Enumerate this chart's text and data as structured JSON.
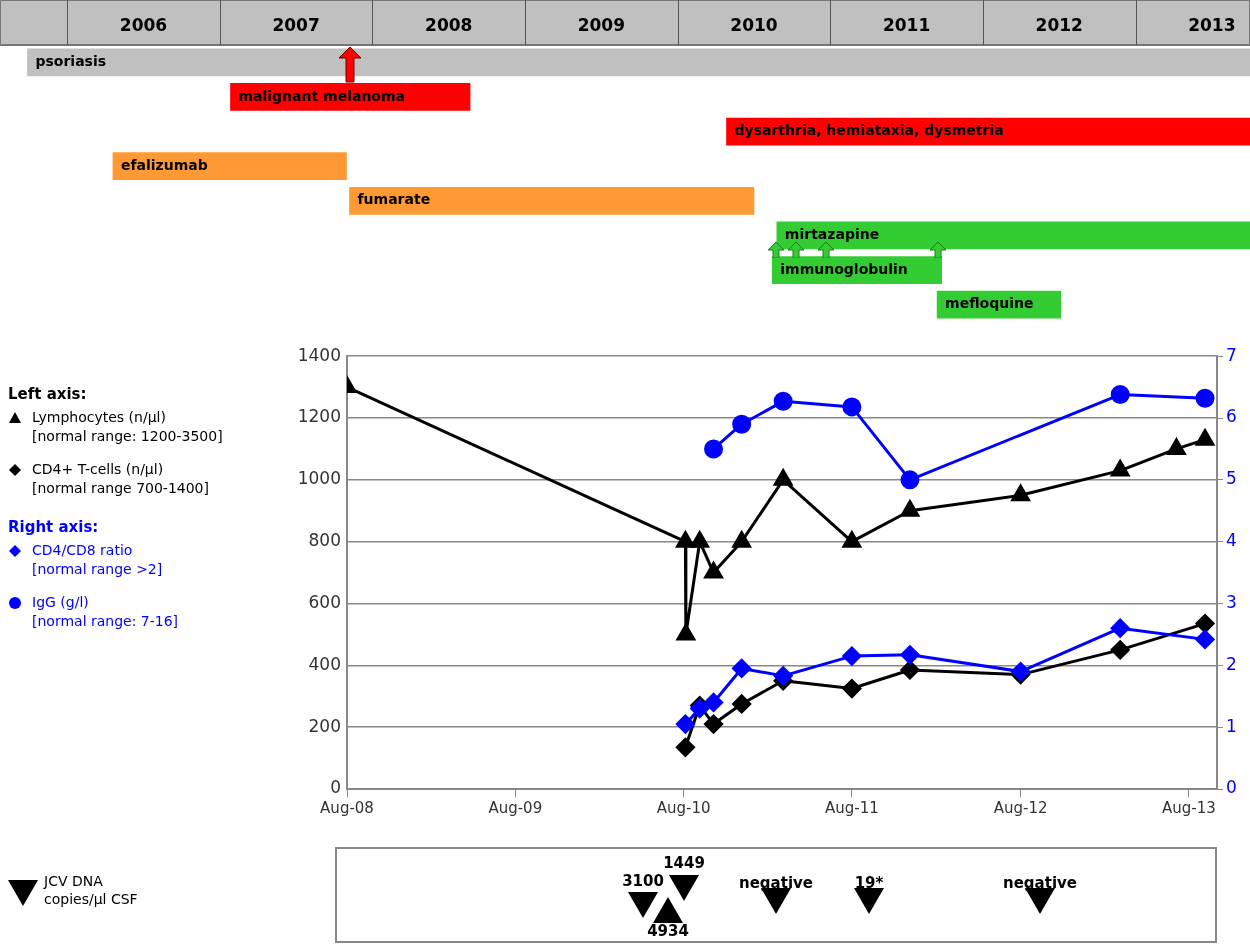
{
  "chart_data": [
    {
      "type": "bar",
      "orientation": "horizontal",
      "categories": [
        null,
        null,
        null,
        null,
        null,
        null,
        null,
        null
      ],
      "xlim": [
        2005.56,
        2013.75
      ],
      "xticks": [
        {
          "value": 2006.5,
          "label": "2006"
        },
        {
          "value": 2007.5,
          "label": "2007"
        },
        {
          "value": 2008.5,
          "label": "2008"
        },
        {
          "value": 2009.5,
          "label": "2009"
        },
        {
          "value": 2010.5,
          "label": "2010"
        },
        {
          "value": 2011.5,
          "label": "2011"
        },
        {
          "value": 2012.5,
          "label": "2012"
        },
        {
          "value": 2013.5,
          "label": "2013"
        }
      ],
      "tick_labels": "x",
      "base": [
        2005.74,
        2007.07,
        2010.32,
        2006.3,
        2007.85,
        2010.65,
        2010.62,
        2011.7
      ],
      "values": [
        8.01,
        1.57,
        3.43,
        1.53,
        2.65,
        3.1,
        1.11,
        0.81
      ],
      "colors": [
        "#c0c0c0",
        "#ff0000",
        "#ff0000",
        "#ff9933",
        "#ff9933",
        "#33cc33",
        "#33cc33",
        "#33cc33"
      ],
      "value_labels": [
        "psoriasis",
        "malignant melanoma",
        "dysarthria, hemiataxia, dysmetria",
        "efalizumab",
        "fumarate",
        "mirtazapine",
        "immunoglobulin",
        "mefloquine"
      ]
    },
    {
      "type": "line",
      "xlim": [
        "2008-08-01",
        "2013-10-01"
      ],
      "xticks": [
        {
          "value": "2008-08-01",
          "label": "Aug-08"
        },
        {
          "value": "2009-08-01",
          "label": "Aug-09"
        },
        {
          "value": "2010-08-01",
          "label": "Aug-10"
        },
        {
          "value": "2011-08-01",
          "label": "Aug-11"
        },
        {
          "value": "2012-08-01",
          "label": "Aug-12"
        },
        {
          "value": "2013-08-01",
          "label": "Aug-13"
        }
      ],
      "ylim": [
        0,
        1400
      ],
      "yticks": [
        0,
        200,
        400,
        600,
        800,
        1000,
        1200,
        1400
      ],
      "y2lim": [
        0,
        7
      ],
      "y2ticks": [
        0,
        1,
        2,
        3,
        4,
        5,
        6,
        7
      ],
      "grid": "y",
      "legend": "left",
      "line_style": "solid",
      "annotations": [
        "Left axis:",
        "Right axis:"
      ],
      "series": [
        {
          "name": "Lymphocytes (n/µl)\n[normal range: 1200-3500]",
          "color": "#000000",
          "marker": "triangle",
          "axis": "y",
          "x": [
            "2008-08-01",
            "2010-08-05",
            "2010-08-06",
            "2010-09-05",
            "2010-10-05",
            "2010-12-05",
            "2011-03-05",
            "2011-08-01",
            "2011-12-05",
            "2012-08-01",
            "2013-03-05",
            "2013-07-05",
            "2013-09-05"
          ],
          "values": [
            1300,
            800,
            500,
            800,
            700,
            800,
            1000,
            800,
            900,
            950,
            1030,
            1100,
            1130
          ]
        },
        {
          "name": "CD4+ T-cells (n/µl)\n[normal range 700-1400]",
          "color": "#000000",
          "marker": "diamond",
          "axis": "y",
          "x": [
            "2010-08-05",
            "2010-09-05",
            "2010-10-05",
            "2010-12-05",
            "2011-03-05",
            "2011-08-01",
            "2011-12-05",
            "2012-08-01",
            "2013-03-05",
            "2013-09-05"
          ],
          "values": [
            135,
            270,
            210,
            275,
            350,
            325,
            385,
            370,
            450,
            535
          ]
        },
        {
          "name": "CD4/CD8 ratio\n[normal range >2]",
          "color": "#0000ff",
          "marker": "diamond",
          "axis": "y2",
          "x": [
            "2010-08-05",
            "2010-09-05",
            "2010-10-05",
            "2010-12-05",
            "2011-03-05",
            "2011-08-01",
            "2011-12-05",
            "2012-08-01",
            "2013-03-05",
            "2013-09-05"
          ],
          "values": [
            1.05,
            1.3,
            1.4,
            1.95,
            1.83,
            2.15,
            2.17,
            1.9,
            2.6,
            2.42
          ]
        },
        {
          "name": "IgG (g/l)\n[normal range: 7-16]",
          "color": "#0000ff",
          "marker": "circle",
          "axis": "y2",
          "x": [
            "2010-10-05",
            "2010-12-05",
            "2011-03-05",
            "2011-08-01",
            "2011-12-05",
            "2013-03-05",
            "2013-09-05"
          ],
          "values": [
            5.5,
            5.9,
            6.27,
            6.18,
            5.0,
            6.38,
            6.32
          ]
        }
      ]
    },
    {
      "type": "other",
      "annotations": [
        "JCV DNA\ncopies/µl CSF",
        "3100",
        "1449",
        "4934",
        "negative",
        "19*",
        "negative"
      ]
    }
  ]
}
